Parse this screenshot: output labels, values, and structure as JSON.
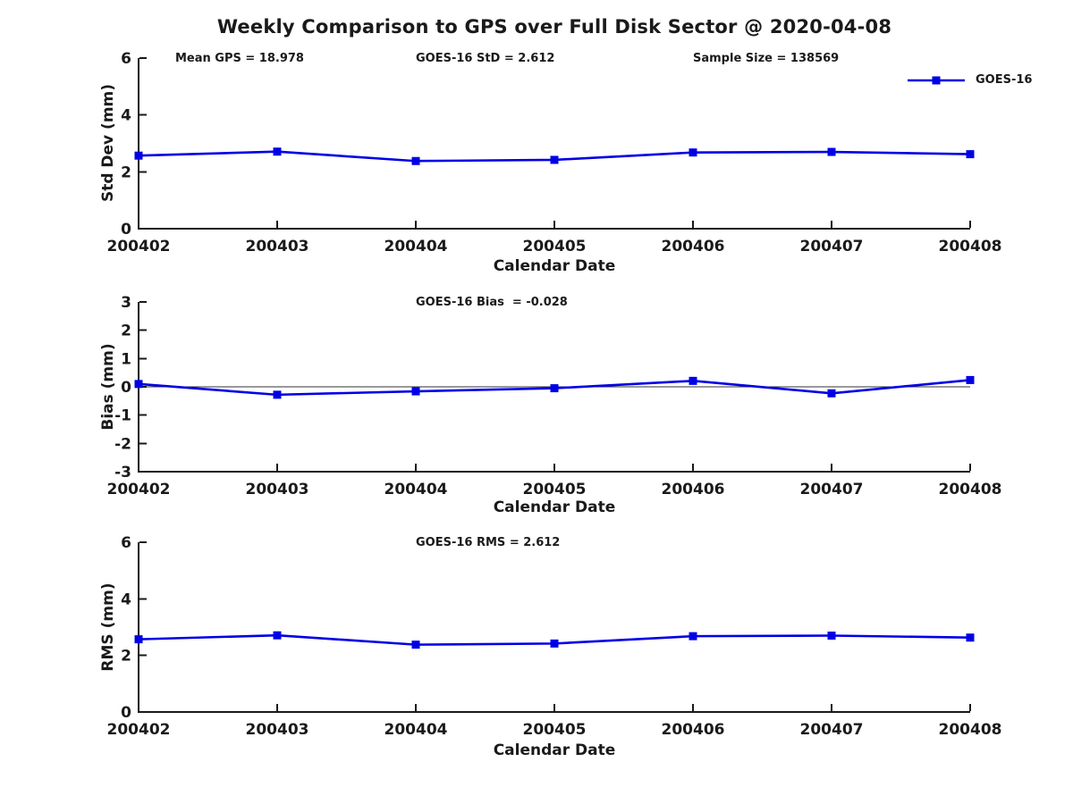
{
  "title": "Weekly Comparison to GPS over Full Disk Sector @ 2020-04-08",
  "legend": {
    "label": "GOES-16",
    "frame": false,
    "position": "upper-right"
  },
  "chart_data": [
    {
      "type": "line",
      "title": "",
      "annotations": [
        "Mean GPS = 18.978",
        "GOES-16 StD = 2.612",
        "Sample Size = 138569"
      ],
      "categories": [
        "200402",
        "200403",
        "200404",
        "200405",
        "200406",
        "200407",
        "200408"
      ],
      "series": [
        {
          "name": "GOES-16",
          "color": "#0000E6",
          "marker": "square",
          "values": [
            2.57,
            2.71,
            2.38,
            2.42,
            2.68,
            2.7,
            2.62
          ]
        }
      ],
      "xlabel": "Calendar Date",
      "ylabel": "Std Dev (mm)",
      "ylim": [
        0,
        6
      ],
      "yticks": [
        0,
        2,
        4,
        6
      ],
      "grid": false,
      "zero_line": false
    },
    {
      "type": "line",
      "title": "",
      "annotations": [
        "GOES-16 Bias  = -0.028"
      ],
      "categories": [
        "200402",
        "200403",
        "200404",
        "200405",
        "200406",
        "200407",
        "200408"
      ],
      "series": [
        {
          "name": "GOES-16",
          "color": "#0000E6",
          "marker": "square",
          "values": [
            0.1,
            -0.28,
            -0.16,
            -0.05,
            0.21,
            -0.23,
            0.24
          ]
        }
      ],
      "xlabel": "Calendar Date",
      "ylabel": "Bias (mm)",
      "ylim": [
        -3,
        3
      ],
      "yticks": [
        -3,
        -2,
        -1,
        0,
        1,
        2,
        3
      ],
      "grid": false,
      "zero_line": true
    },
    {
      "type": "line",
      "title": "",
      "annotations": [
        "GOES-16 RMS = 2.612"
      ],
      "categories": [
        "200402",
        "200403",
        "200404",
        "200405",
        "200406",
        "200407",
        "200408"
      ],
      "series": [
        {
          "name": "GOES-16",
          "color": "#0000E6",
          "marker": "square",
          "values": [
            2.57,
            2.71,
            2.38,
            2.42,
            2.68,
            2.7,
            2.63
          ]
        }
      ],
      "xlabel": "Calendar Date",
      "ylabel": "RMS (mm)",
      "ylim": [
        0,
        6
      ],
      "yticks": [
        0,
        2,
        4,
        6
      ],
      "grid": false,
      "zero_line": false
    }
  ],
  "style": {
    "axis_color": "#1a1a1a",
    "zero_line_color": "#333333",
    "background": "#ffffff"
  }
}
